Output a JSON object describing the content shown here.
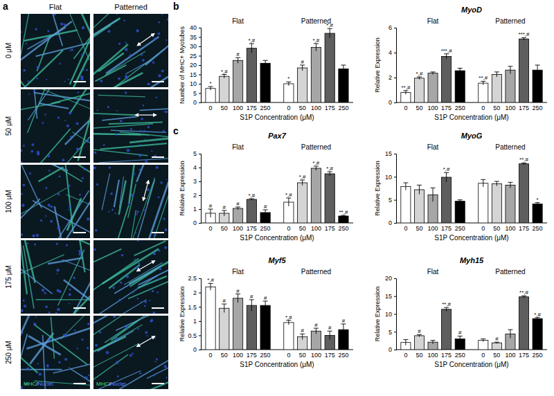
{
  "panel_a": {
    "label": "a",
    "columns": [
      "Flat",
      "Patterned"
    ],
    "rows": [
      "0 μM",
      "50 μM",
      "100 μM",
      "175 μM",
      "250 μM"
    ],
    "stain": [
      "MHC",
      "/",
      "Nuclei"
    ]
  },
  "panel_labels": [
    "b",
    "c"
  ],
  "chart_data": [
    {
      "type": "bar",
      "ylabel": "Number of MHC+ Myotubes",
      "xlabel": "S1P Concentration (μM)",
      "groups": [
        "Flat",
        "Patterned"
      ],
      "categories": [
        "0",
        "50",
        "100",
        "175",
        "250",
        "0",
        "50",
        "100",
        "175",
        "250"
      ],
      "values": [
        7.5,
        14,
        22.5,
        29,
        21,
        10,
        18.5,
        29.5,
        37,
        18
      ],
      "errors": [
        1,
        1,
        1.5,
        2.5,
        1.5,
        1,
        1.5,
        2,
        2.5,
        2
      ],
      "annotations": [
        "*",
        "*,#",
        "#",
        "*,#",
        null,
        "*",
        "#",
        "*,#",
        "*,#",
        null
      ],
      "colors": [
        "#ffffff",
        "#d4d4d4",
        "#a6a6a6",
        "#5e5e5e",
        "#000000",
        "#ffffff",
        "#d4d4d4",
        "#a6a6a6",
        "#5e5e5e",
        "#000000"
      ],
      "ylim": [
        0,
        40
      ],
      "yticks": [
        0,
        5,
        10,
        15,
        20,
        25,
        30,
        35,
        40
      ]
    },
    {
      "type": "bar",
      "title": "MyoD",
      "ylabel": "Relative Expression",
      "xlabel": "S1P Concentration (μM)",
      "groups": [
        "Flat",
        "Patterned"
      ],
      "categories": [
        "0",
        "50",
        "100",
        "175",
        "250",
        "0",
        "50",
        "100",
        "175",
        "250"
      ],
      "values": [
        0.8,
        1.95,
        2.35,
        3.7,
        2.55,
        1.55,
        2.25,
        2.6,
        5.1,
        2.6
      ],
      "errors": [
        0.15,
        0.1,
        0.1,
        0.2,
        0.2,
        0.15,
        0.2,
        0.3,
        0.1,
        0.4
      ],
      "annotations": [
        "**,#",
        "*,#",
        null,
        "***,#",
        null,
        "**,#",
        null,
        null,
        "***,#",
        null
      ],
      "colors": [
        "#ffffff",
        "#d4d4d4",
        "#a6a6a6",
        "#5e5e5e",
        "#000000",
        "#ffffff",
        "#d4d4d4",
        "#a6a6a6",
        "#5e5e5e",
        "#000000"
      ],
      "ylim": [
        0,
        6
      ],
      "yticks": [
        0,
        2,
        4,
        6
      ]
    },
    {
      "type": "bar",
      "title": "Pax7",
      "ylabel": "Relative Expression",
      "xlabel": "S1P Concentration (μM)",
      "groups": [
        "Flat",
        "Patterned"
      ],
      "categories": [
        "0",
        "50",
        "100",
        "175",
        "250",
        "0",
        "50",
        "100",
        "175",
        "250"
      ],
      "values": [
        0.7,
        0.7,
        1.05,
        1.7,
        0.75,
        1.5,
        2.9,
        3.95,
        3.55,
        0.5
      ],
      "errors": [
        0.3,
        0.2,
        0.1,
        0.05,
        0.2,
        0.3,
        0.2,
        0.15,
        0.15,
        0.05
      ],
      "annotations": [
        "#",
        "#",
        "#",
        "*,#",
        "#",
        "*,#",
        "*,#",
        "*,#",
        "*,#",
        "**,#"
      ],
      "colors": [
        "#ffffff",
        "#d4d4d4",
        "#a6a6a6",
        "#5e5e5e",
        "#000000",
        "#ffffff",
        "#d4d4d4",
        "#a6a6a6",
        "#5e5e5e",
        "#000000"
      ],
      "ylim": [
        0,
        5
      ],
      "yticks": [
        0,
        1,
        2,
        3,
        4,
        5
      ]
    },
    {
      "type": "bar",
      "title": "MyoG",
      "ylabel": "Relative Expression",
      "xlabel": "S1P Concentration (μM)",
      "groups": [
        "Flat",
        "Patterned"
      ],
      "categories": [
        "0",
        "50",
        "100",
        "175",
        "250",
        "0",
        "50",
        "100",
        "175",
        "250"
      ],
      "values": [
        7.9,
        7.2,
        6.1,
        9.9,
        4.7,
        8.6,
        8.5,
        8.2,
        12.8,
        4.1
      ],
      "errors": [
        0.8,
        1,
        1.5,
        1,
        0.3,
        0.8,
        0.5,
        0.6,
        0.2,
        0.3
      ],
      "annotations": [
        null,
        null,
        null,
        "*,#",
        null,
        null,
        null,
        null,
        "**,#",
        "*"
      ],
      "colors": [
        "#ffffff",
        "#d4d4d4",
        "#a6a6a6",
        "#5e5e5e",
        "#000000",
        "#ffffff",
        "#d4d4d4",
        "#a6a6a6",
        "#5e5e5e",
        "#000000"
      ],
      "ylim": [
        0,
        15
      ],
      "yticks": [
        0,
        5,
        10,
        15
      ]
    },
    {
      "type": "bar",
      "title": "Myf5",
      "ylabel": "Relative Expression",
      "xlabel": "S1P Concentration (μM)",
      "groups": [
        "Flat",
        "Patterned"
      ],
      "categories": [
        "0",
        "50",
        "100",
        "175",
        "250",
        "0",
        "50",
        "100",
        "175",
        "250"
      ],
      "values": [
        2.2,
        1.45,
        1.8,
        1.55,
        1.55,
        0.95,
        0.45,
        0.65,
        0.5,
        0.7
      ],
      "errors": [
        0.12,
        0.15,
        0.15,
        0.2,
        0.15,
        0.08,
        0.1,
        0.1,
        0.15,
        0.2
      ],
      "annotations": [
        "*,#",
        "#",
        "#",
        "#",
        "#",
        "*,#",
        "#",
        "#",
        "#",
        "#"
      ],
      "colors": [
        "#ffffff",
        "#d4d4d4",
        "#a6a6a6",
        "#5e5e5e",
        "#000000",
        "#ffffff",
        "#d4d4d4",
        "#a6a6a6",
        "#5e5e5e",
        "#000000"
      ],
      "ylim": [
        0,
        2.5
      ],
      "yticks": [
        0,
        0.5,
        1,
        1.5,
        2,
        2.5
      ]
    },
    {
      "type": "bar",
      "title": "Myh15",
      "ylabel": "Relative Expression",
      "xlabel": "S1P Concentration (μM)",
      "groups": [
        "Flat",
        "Patterned"
      ],
      "categories": [
        "0",
        "50",
        "100",
        "175",
        "250",
        "0",
        "50",
        "100",
        "175",
        "250"
      ],
      "values": [
        2.0,
        3.9,
        2.1,
        11.3,
        3.0,
        2.6,
        1.9,
        4.4,
        14.8,
        8.7
      ],
      "errors": [
        0.8,
        0.3,
        0.5,
        0.5,
        0.8,
        0.4,
        0.2,
        1.2,
        0.3,
        0.3
      ],
      "annotations": [
        null,
        "#",
        null,
        "**,#",
        "#",
        null,
        "#",
        null,
        "**,#",
        "*,#"
      ],
      "colors": [
        "#ffffff",
        "#d4d4d4",
        "#a6a6a6",
        "#5e5e5e",
        "#000000",
        "#ffffff",
        "#d4d4d4",
        "#a6a6a6",
        "#5e5e5e",
        "#000000"
      ],
      "ylim": [
        0,
        20
      ],
      "yticks": [
        0,
        5,
        10,
        15,
        20
      ]
    }
  ]
}
